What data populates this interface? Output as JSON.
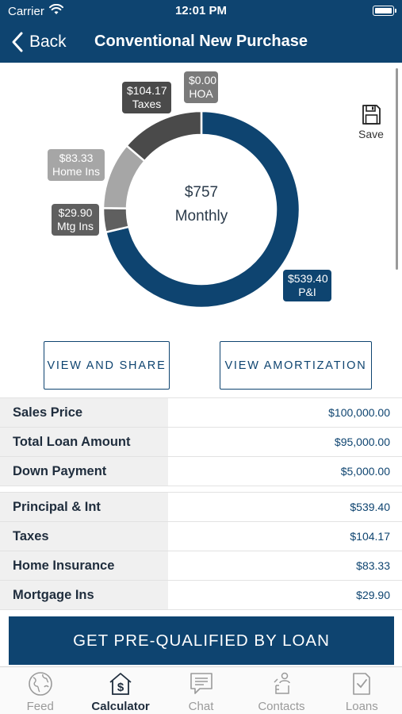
{
  "status": {
    "carrier": "Carrier",
    "time": "12:01 PM"
  },
  "nav": {
    "back": "Back",
    "title": "Conventional New Purchase"
  },
  "chart": {
    "center_value": "$757",
    "center_label": "Monthly",
    "tags": {
      "pi": {
        "amount": "$539.40",
        "label": "P&I"
      },
      "taxes": {
        "amount": "$104.17",
        "label": "Taxes"
      },
      "hoa": {
        "amount": "$0.00",
        "label": "HOA"
      },
      "home": {
        "amount": "$83.33",
        "label": "Home Ins"
      },
      "mtg": {
        "amount": "$29.90",
        "label": "Mtg Ins"
      }
    },
    "colors": {
      "pi": "#0e4470",
      "taxes": "#4a4a4a",
      "hoa": "#7a7a7a",
      "home": "#a6a6a6",
      "mtg": "#5f5f5f"
    }
  },
  "chart_data": {
    "type": "pie",
    "categories": [
      "P&I",
      "Taxes",
      "HOA",
      "Home Ins",
      "Mtg Ins"
    ],
    "values": [
      539.4,
      104.17,
      0.0,
      83.33,
      29.9
    ]
  },
  "save": {
    "label": "Save"
  },
  "buttons": {
    "view_share": "VIEW AND SHARE",
    "view_amort": "VIEW AMORTIZATION"
  },
  "loan_table": [
    {
      "label": "Sales Price",
      "value": "$100,000.00"
    },
    {
      "label": "Total Loan Amount",
      "value": "$95,000.00"
    },
    {
      "label": "Down Payment",
      "value": "$5,000.00"
    }
  ],
  "payment_table": [
    {
      "label": "Principal & Int",
      "value": "$539.40"
    },
    {
      "label": "Taxes",
      "value": "$104.17"
    },
    {
      "label": "Home Insurance",
      "value": "$83.33"
    },
    {
      "label": "Mortgage Ins",
      "value": "$29.90"
    }
  ],
  "cta": "GET PRE-QUALIFIED BY LOAN",
  "tabs": [
    {
      "label": "Feed",
      "icon": "globe-icon"
    },
    {
      "label": "Calculator",
      "icon": "house-dollar-icon"
    },
    {
      "label": "Chat",
      "icon": "chat-icon"
    },
    {
      "label": "Contacts",
      "icon": "contacts-icon"
    },
    {
      "label": "Loans",
      "icon": "document-check-icon"
    }
  ],
  "active_tab": "Calculator"
}
